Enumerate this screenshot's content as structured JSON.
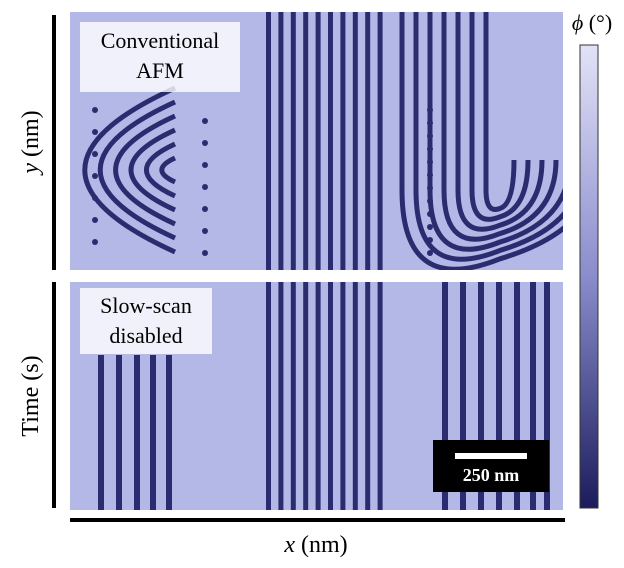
{
  "panels": {
    "top": {
      "label": [
        "Conventional",
        "AFM"
      ]
    },
    "bottom": {
      "label": [
        "Slow-scan",
        "disabled"
      ]
    }
  },
  "axes": {
    "y_top": {
      "symbol": "y",
      "unit": "(nm)"
    },
    "y_bottom": "Time (s)",
    "x": {
      "symbol": "x",
      "unit": "(nm)"
    }
  },
  "colorbar": {
    "symbol": "ϕ",
    "unit": "(°)"
  },
  "scale_bar": "250 nm"
}
